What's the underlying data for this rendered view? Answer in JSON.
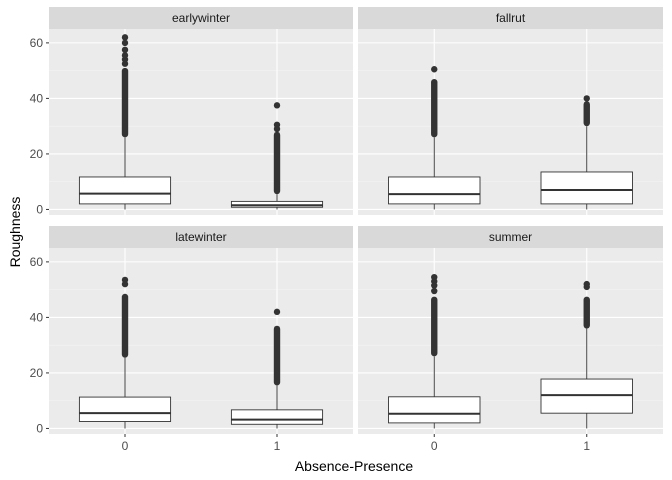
{
  "chart_data": {
    "type": "boxplot",
    "layout": "facet_wrap 2x2",
    "xlabel": "Absence-Presence",
    "ylabel": "Roughness",
    "categories": [
      "0",
      "1"
    ],
    "ylim": [
      -2,
      65
    ],
    "yticks": [
      0,
      20,
      40,
      60
    ],
    "grid": true,
    "facets": [
      {
        "name": "earlywinter",
        "boxes": [
          {
            "category": "0",
            "q1": 2.0,
            "median": 5.7,
            "q3": 11.7,
            "whisker_low": 0.0,
            "whisker_high": 26.0,
            "outliers_dense": [
              26.0,
              51.0
            ],
            "outliers_sparse": [
              52.5,
              54.0,
              55.5,
              57.5,
              60.0,
              62.0
            ]
          },
          {
            "category": "1",
            "q1": 0.8,
            "median": 1.5,
            "q3": 2.9,
            "whisker_low": 0.0,
            "whisker_high": 5.5,
            "outliers_dense": [
              5.5,
              28.0
            ],
            "outliers_sparse": [
              29.0,
              30.5,
              37.5
            ]
          }
        ]
      },
      {
        "name": "fallrut",
        "boxes": [
          {
            "category": "0",
            "q1": 2.0,
            "median": 5.5,
            "q3": 11.7,
            "whisker_low": 0.0,
            "whisker_high": 26.0,
            "outliers_dense": [
              26.0,
              47.0
            ],
            "outliers_sparse": [
              50.5
            ]
          },
          {
            "category": "1",
            "q1": 2.0,
            "median": 7.0,
            "q3": 13.5,
            "whisker_low": 0.0,
            "whisker_high": 30.0,
            "outliers_dense": [
              30.0,
              39.0
            ],
            "outliers_sparse": [
              40.0
            ]
          }
        ]
      },
      {
        "name": "latewinter",
        "boxes": [
          {
            "category": "0",
            "q1": 2.5,
            "median": 5.5,
            "q3": 11.3,
            "whisker_low": 0.0,
            "whisker_high": 25.5,
            "outliers_dense": [
              25.5,
              48.5
            ],
            "outliers_sparse": [
              52.0,
              53.5
            ]
          },
          {
            "category": "1",
            "q1": 1.5,
            "median": 3.2,
            "q3": 6.7,
            "whisker_low": 0.0,
            "whisker_high": 15.5,
            "outliers_dense": [
              15.5,
              37.0
            ],
            "outliers_sparse": [
              42.0
            ]
          }
        ]
      },
      {
        "name": "summer",
        "boxes": [
          {
            "category": "0",
            "q1": 2.0,
            "median": 5.3,
            "q3": 11.4,
            "whisker_low": 0.0,
            "whisker_high": 26.0,
            "outliers_dense": [
              26.0,
              47.5
            ],
            "outliers_sparse": [
              49.5,
              51.5,
              53.0,
              54.5
            ]
          },
          {
            "category": "1",
            "q1": 5.5,
            "median": 12.0,
            "q3": 17.8,
            "whisker_low": 0.0,
            "whisker_high": 36.0,
            "outliers_dense": [
              36.0,
              47.5
            ],
            "outliers_sparse": [
              51.0,
              52.0
            ]
          }
        ]
      }
    ]
  }
}
